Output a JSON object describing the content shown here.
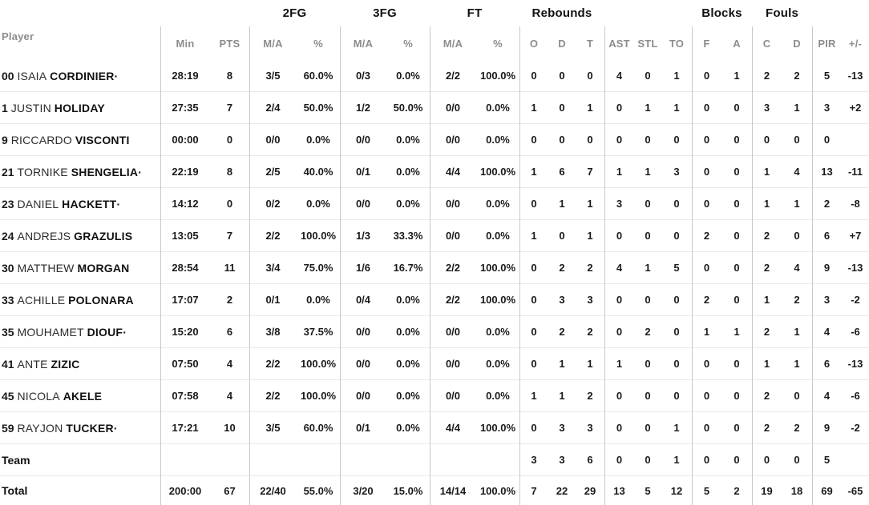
{
  "meta": {
    "starter_mark": "·"
  },
  "colors": {
    "header_text": "#8c8c8c",
    "group_header_text": "#111111",
    "data_text": "#1a1a1a",
    "vertical_divider": "#c9c9c9",
    "horizontal_divider": "#e9e9e9",
    "background": "#ffffff"
  },
  "header": {
    "groups": [
      {
        "label": "2FG"
      },
      {
        "label": "3FG"
      },
      {
        "label": "FT"
      },
      {
        "label": "Rebounds"
      },
      {
        "label": "Blocks"
      },
      {
        "label": "Fouls"
      }
    ],
    "columns": [
      "Player",
      "Min",
      "PTS",
      "M/A",
      "%",
      "M/A",
      "%",
      "M/A",
      "%",
      "O",
      "D",
      "T",
      "AST",
      "STL",
      "TO",
      "F",
      "A",
      "C",
      "D",
      "PIR",
      "+/-"
    ]
  },
  "rows": [
    {
      "num": "00",
      "first": "ISAIA",
      "last": "CORDINIER",
      "starter": true,
      "stats": [
        "28:19",
        "8",
        "3/5",
        "60.0%",
        "0/3",
        "0.0%",
        "2/2",
        "100.0%",
        "0",
        "0",
        "0",
        "4",
        "0",
        "1",
        "0",
        "1",
        "2",
        "2",
        "5",
        "-13"
      ]
    },
    {
      "num": "1",
      "first": "JUSTIN",
      "last": "HOLIDAY",
      "starter": false,
      "stats": [
        "27:35",
        "7",
        "2/4",
        "50.0%",
        "1/2",
        "50.0%",
        "0/0",
        "0.0%",
        "1",
        "0",
        "1",
        "0",
        "1",
        "1",
        "0",
        "0",
        "3",
        "1",
        "3",
        "+2"
      ]
    },
    {
      "num": "9",
      "first": "RICCARDO",
      "last": "VISCONTI",
      "starter": false,
      "stats": [
        "00:00",
        "0",
        "0/0",
        "0.0%",
        "0/0",
        "0.0%",
        "0/0",
        "0.0%",
        "0",
        "0",
        "0",
        "0",
        "0",
        "0",
        "0",
        "0",
        "0",
        "0",
        "0",
        ""
      ]
    },
    {
      "num": "21",
      "first": "TORNIKE",
      "last": "SHENGELIA",
      "starter": true,
      "stats": [
        "22:19",
        "8",
        "2/5",
        "40.0%",
        "0/1",
        "0.0%",
        "4/4",
        "100.0%",
        "1",
        "6",
        "7",
        "1",
        "1",
        "3",
        "0",
        "0",
        "1",
        "4",
        "13",
        "-11"
      ]
    },
    {
      "num": "23",
      "first": "DANIEL",
      "last": "HACKETT",
      "starter": true,
      "stats": [
        "14:12",
        "0",
        "0/2",
        "0.0%",
        "0/0",
        "0.0%",
        "0/0",
        "0.0%",
        "0",
        "1",
        "1",
        "3",
        "0",
        "0",
        "0",
        "0",
        "1",
        "1",
        "2",
        "-8"
      ]
    },
    {
      "num": "24",
      "first": "ANDREJS",
      "last": "GRAZULIS",
      "starter": false,
      "stats": [
        "13:05",
        "7",
        "2/2",
        "100.0%",
        "1/3",
        "33.3%",
        "0/0",
        "0.0%",
        "1",
        "0",
        "1",
        "0",
        "0",
        "0",
        "2",
        "0",
        "2",
        "0",
        "6",
        "+7"
      ]
    },
    {
      "num": "30",
      "first": "MATTHEW",
      "last": "MORGAN",
      "starter": false,
      "stats": [
        "28:54",
        "11",
        "3/4",
        "75.0%",
        "1/6",
        "16.7%",
        "2/2",
        "100.0%",
        "0",
        "2",
        "2",
        "4",
        "1",
        "5",
        "0",
        "0",
        "2",
        "4",
        "9",
        "-13"
      ]
    },
    {
      "num": "33",
      "first": "ACHILLE",
      "last": "POLONARA",
      "starter": false,
      "stats": [
        "17:07",
        "2",
        "0/1",
        "0.0%",
        "0/4",
        "0.0%",
        "2/2",
        "100.0%",
        "0",
        "3",
        "3",
        "0",
        "0",
        "0",
        "2",
        "0",
        "1",
        "2",
        "3",
        "-2"
      ]
    },
    {
      "num": "35",
      "first": "MOUHAMET",
      "last": "DIOUF",
      "starter": true,
      "stats": [
        "15:20",
        "6",
        "3/8",
        "37.5%",
        "0/0",
        "0.0%",
        "0/0",
        "0.0%",
        "0",
        "2",
        "2",
        "0",
        "2",
        "0",
        "1",
        "1",
        "2",
        "1",
        "4",
        "-6"
      ]
    },
    {
      "num": "41",
      "first": "ANTE",
      "last": "ZIZIC",
      "starter": false,
      "stats": [
        "07:50",
        "4",
        "2/2",
        "100.0%",
        "0/0",
        "0.0%",
        "0/0",
        "0.0%",
        "0",
        "1",
        "1",
        "1",
        "0",
        "0",
        "0",
        "0",
        "1",
        "1",
        "6",
        "-13"
      ]
    },
    {
      "num": "45",
      "first": "NICOLA",
      "last": "AKELE",
      "starter": false,
      "stats": [
        "07:58",
        "4",
        "2/2",
        "100.0%",
        "0/0",
        "0.0%",
        "0/0",
        "0.0%",
        "1",
        "1",
        "2",
        "0",
        "0",
        "0",
        "0",
        "0",
        "2",
        "0",
        "4",
        "-6"
      ]
    },
    {
      "num": "59",
      "first": "RAYJON",
      "last": "TUCKER",
      "starter": true,
      "stats": [
        "17:21",
        "10",
        "3/5",
        "60.0%",
        "0/1",
        "0.0%",
        "4/4",
        "100.0%",
        "0",
        "3",
        "3",
        "0",
        "0",
        "1",
        "0",
        "0",
        "2",
        "2",
        "9",
        "-2"
      ]
    },
    {
      "label": "Team",
      "stats": [
        "",
        "",
        "",
        "",
        "",
        "",
        "",
        "",
        "3",
        "3",
        "6",
        "0",
        "0",
        "1",
        "0",
        "0",
        "0",
        "0",
        "5",
        ""
      ]
    },
    {
      "label": "Total",
      "stats": [
        "200:00",
        "67",
        "22/40",
        "55.0%",
        "3/20",
        "15.0%",
        "14/14",
        "100.0%",
        "7",
        "22",
        "29",
        "13",
        "5",
        "12",
        "5",
        "2",
        "19",
        "18",
        "69",
        "-65"
      ]
    }
  ]
}
